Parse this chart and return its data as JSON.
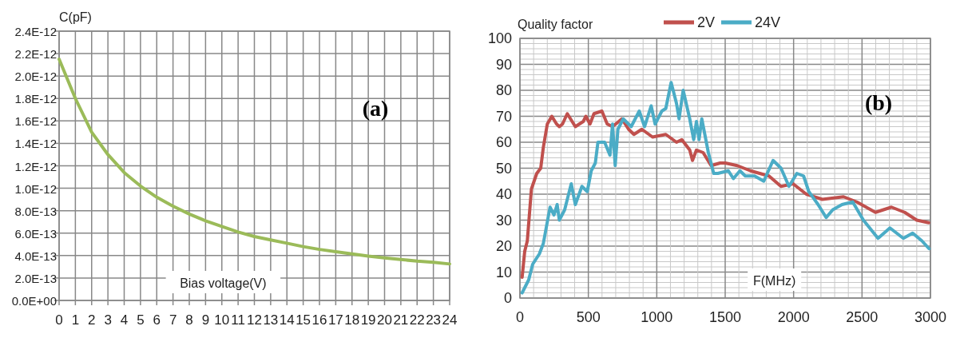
{
  "chart_data": [
    {
      "type": "line",
      "ylabel": "C(pF)",
      "xlabel": "Bias voltage(V)",
      "annotations": [
        "(a)"
      ],
      "grid": true,
      "legend": false,
      "xlim": [
        0,
        24
      ],
      "xticks": [
        0,
        1,
        2,
        3,
        4,
        5,
        6,
        7,
        8,
        9,
        10,
        11,
        12,
        13,
        14,
        15,
        16,
        17,
        18,
        19,
        20,
        21,
        22,
        23,
        24
      ],
      "ylim": [
        0,
        2.4e-12
      ],
      "yticks": [
        {
          "value": 0,
          "label": "0.0E+00"
        },
        {
          "value": 2e-13,
          "label": "2.0E-13"
        },
        {
          "value": 4e-13,
          "label": "4.0E-13"
        },
        {
          "value": 6e-13,
          "label": "6.0E-13"
        },
        {
          "value": 8e-13,
          "label": "8.0E-13"
        },
        {
          "value": 1e-12,
          "label": "1.0E-12"
        },
        {
          "value": 1.2e-12,
          "label": "1.2E-12"
        },
        {
          "value": 1.4e-12,
          "label": "1.4E-12"
        },
        {
          "value": 1.6e-12,
          "label": "1.6E-12"
        },
        {
          "value": 1.8e-12,
          "label": "1.8E-12"
        },
        {
          "value": 2e-12,
          "label": "2.0E-12"
        },
        {
          "value": 2.2e-12,
          "label": "2.2E-12"
        },
        {
          "value": 2.4e-12,
          "label": "2.4E-12"
        }
      ],
      "x": [
        0,
        1,
        2,
        3,
        4,
        5,
        6,
        7,
        8,
        9,
        10,
        11,
        12,
        13,
        14,
        15,
        16,
        17,
        18,
        19,
        20,
        21,
        22,
        23,
        24
      ],
      "series": [
        {
          "color": "#9bbb59",
          "values": [
            2.15e-12,
            1.8e-12,
            1.5e-12,
            1.3e-12,
            1.14e-12,
            1.02e-12,
            9.2e-13,
            8.4e-13,
            7.7e-13,
            7.1e-13,
            6.6e-13,
            6.1e-13,
            5.7e-13,
            5.4e-13,
            5.1e-13,
            4.8e-13,
            4.55e-13,
            4.35e-13,
            4.15e-13,
            3.95e-13,
            3.8e-13,
            3.65e-13,
            3.5e-13,
            3.4e-13,
            3.25e-13
          ]
        }
      ]
    },
    {
      "type": "line",
      "ylabel": "Quality factor",
      "xlabel": "F(MHz)",
      "annotations": [
        "(b)"
      ],
      "grid": true,
      "legend": "top",
      "xlim": [
        0,
        3000
      ],
      "xticks": [
        0,
        {
          "value": 100,
          "label": null
        },
        {
          "value": 200,
          "label": null
        },
        {
          "value": 300,
          "label": null
        },
        {
          "value": 400,
          "label": null
        },
        500,
        {
          "value": 600,
          "label": null
        },
        {
          "value": 700,
          "label": null
        },
        {
          "value": 800,
          "label": null
        },
        {
          "value": 900,
          "label": null
        },
        1000,
        {
          "value": 1100,
          "label": null
        },
        {
          "value": 1200,
          "label": null
        },
        {
          "value": 1300,
          "label": null
        },
        {
          "value": 1400,
          "label": null
        },
        1500,
        {
          "value": 1600,
          "label": null
        },
        {
          "value": 1700,
          "label": null
        },
        {
          "value": 1800,
          "label": null
        },
        {
          "value": 1900,
          "label": null
        },
        2000,
        {
          "value": 2100,
          "label": null
        },
        {
          "value": 2200,
          "label": null
        },
        {
          "value": 2300,
          "label": null
        },
        {
          "value": 2400,
          "label": null
        },
        2500,
        {
          "value": 2600,
          "label": null
        },
        {
          "value": 2700,
          "label": null
        },
        {
          "value": 2800,
          "label": null
        },
        {
          "value": 2900,
          "label": null
        },
        3000
      ],
      "ylim": [
        0,
        100
      ],
      "yticks": [
        0,
        {
          "value": 2,
          "label": null
        },
        {
          "value": 4,
          "label": null
        },
        {
          "value": 6,
          "label": null
        },
        {
          "value": 8,
          "label": null
        },
        10,
        {
          "value": 12,
          "label": null
        },
        {
          "value": 14,
          "label": null
        },
        {
          "value": 16,
          "label": null
        },
        {
          "value": 18,
          "label": null
        },
        20,
        {
          "value": 22,
          "label": null
        },
        {
          "value": 24,
          "label": null
        },
        {
          "value": 26,
          "label": null
        },
        {
          "value": 28,
          "label": null
        },
        30,
        {
          "value": 32,
          "label": null
        },
        {
          "value": 34,
          "label": null
        },
        {
          "value": 36,
          "label": null
        },
        {
          "value": 38,
          "label": null
        },
        40,
        {
          "value": 42,
          "label": null
        },
        {
          "value": 44,
          "label": null
        },
        {
          "value": 46,
          "label": null
        },
        {
          "value": 48,
          "label": null
        },
        50,
        {
          "value": 52,
          "label": null
        },
        {
          "value": 54,
          "label": null
        },
        {
          "value": 56,
          "label": null
        },
        {
          "value": 58,
          "label": null
        },
        60,
        {
          "value": 62,
          "label": null
        },
        {
          "value": 64,
          "label": null
        },
        {
          "value": 66,
          "label": null
        },
        {
          "value": 68,
          "label": null
        },
        70,
        {
          "value": 72,
          "label": null
        },
        {
          "value": 74,
          "label": null
        },
        {
          "value": 76,
          "label": null
        },
        {
          "value": 78,
          "label": null
        },
        80,
        {
          "value": 82,
          "label": null
        },
        {
          "value": 84,
          "label": null
        },
        {
          "value": 86,
          "label": null
        },
        {
          "value": 88,
          "label": null
        },
        90,
        {
          "value": 92,
          "label": null
        },
        {
          "value": 94,
          "label": null
        },
        {
          "value": 96,
          "label": null
        },
        {
          "value": 98,
          "label": null
        },
        100
      ],
      "series": [
        {
          "name": "2V",
          "color": "#c0504d",
          "x": [
            16,
            35,
            54,
            84,
            123,
            152,
            171,
            200,
            233,
            268,
            288,
            311,
            346,
            405,
            463,
            482,
            512,
            541,
            599,
            638,
            677,
            745,
            794,
            833,
            891,
            969,
            1066,
            1144,
            1183,
            1241,
            1261,
            1290,
            1339,
            1397,
            1463,
            1501,
            1588,
            1685,
            1820,
            1908,
            1996,
            2093,
            2210,
            2365,
            2462,
            2598,
            2715,
            2812,
            2900,
            2987
          ],
          "values": [
            8,
            18,
            22,
            42,
            48,
            50,
            58,
            67,
            70,
            67,
            66,
            67,
            71,
            66,
            68,
            70,
            67,
            71,
            72,
            67,
            66,
            69,
            65,
            63,
            65,
            62,
            63,
            60,
            61,
            57,
            53,
            57,
            56,
            51,
            52,
            52,
            51,
            49,
            47,
            43,
            44,
            40,
            38,
            39,
            37,
            33,
            35,
            33,
            30,
            29
          ]
        },
        {
          "name": "24V",
          "color": "#4bacc6",
          "x": [
            16,
            64,
            93,
            142,
            171,
            220,
            249,
            272,
            288,
            327,
            375,
            405,
            453,
            492,
            521,
            551,
            570,
            619,
            658,
            677,
            696,
            716,
            755,
            813,
            872,
            911,
            959,
            988,
            1037,
            1066,
            1105,
            1144,
            1163,
            1193,
            1241,
            1270,
            1290,
            1309,
            1329,
            1377,
            1416,
            1446,
            1523,
            1560,
            1608,
            1647,
            1715,
            1782,
            1850,
            1908,
            1966,
            2024,
            2073,
            2111,
            2179,
            2238,
            2286,
            2354,
            2432,
            2510,
            2617,
            2704,
            2802,
            2870,
            2938,
            2990
          ],
          "values": [
            2,
            7,
            13,
            17,
            21,
            35,
            32,
            36,
            30,
            34,
            44,
            36,
            43,
            41,
            49,
            52,
            60,
            60,
            55,
            67,
            51,
            65,
            69,
            66,
            72,
            66,
            74,
            67,
            72,
            73,
            83,
            75,
            69,
            80,
            69,
            61,
            68,
            61,
            69,
            56,
            48,
            48,
            49,
            46,
            49,
            47,
            47,
            45,
            53,
            50,
            43,
            48,
            47,
            41,
            36,
            31,
            34,
            36,
            37,
            30,
            23,
            27,
            23,
            25,
            22,
            19
          ]
        }
      ]
    }
  ]
}
